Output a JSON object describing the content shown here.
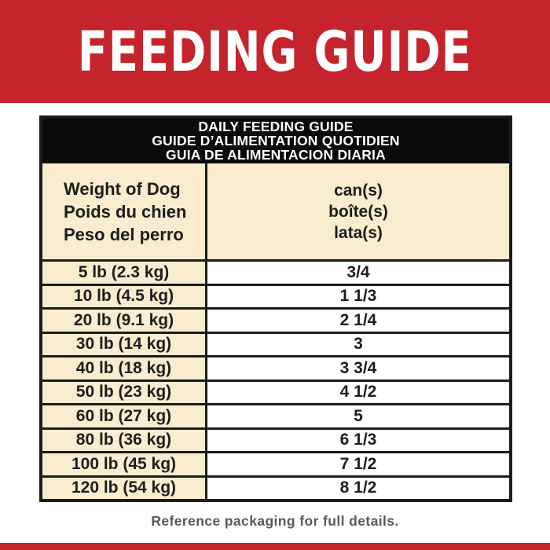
{
  "banner": {
    "title": "FEEDING GUIDE",
    "background_color": "#C5242C",
    "text_color": "#FFFFFF"
  },
  "table": {
    "title_lines": [
      "DAILY FEEDING GUIDE",
      "GUIDE D’ALIMENTATION QUOTIDIEN",
      "GUIA DE ALIMENTACION DIARIA"
    ],
    "column_headers": {
      "weight_lines": [
        "Weight of Dog",
        "Poids du chien",
        "Peso del perro"
      ],
      "cans_lines": [
        "can(s)",
        "boîte(s)",
        "lata(s)"
      ]
    },
    "rows": [
      {
        "weight": "5 lb (2.3 kg)",
        "cans": "3/4"
      },
      {
        "weight": "10 lb (4.5 kg)",
        "cans": "1 1/3"
      },
      {
        "weight": "20 lb (9.1 kg)",
        "cans": "2 1/4"
      },
      {
        "weight": "30 lb (14 kg)",
        "cans": "3"
      },
      {
        "weight": "40 lb (18 kg)",
        "cans": "3 3/4"
      },
      {
        "weight": "50 lb (23 kg)",
        "cans": "4 1/2"
      },
      {
        "weight": "60 lb (27 kg)",
        "cans": "5"
      },
      {
        "weight": "80 lb (36 kg)",
        "cans": "6 1/3"
      },
      {
        "weight": "100 lb (45 kg)",
        "cans": "7 1/2"
      },
      {
        "weight": "120 lb (54 kg)",
        "cans": "8 1/2"
      }
    ],
    "colors": {
      "header_background": "#0B0B0B",
      "cream_cell": "#FAECCF",
      "border": "#1C1C1C",
      "value_cell": "#FFFFFF"
    }
  },
  "footer": {
    "note": "Reference packaging for full details.",
    "note_color": "#58595B",
    "strip_color": "#C5242C"
  }
}
